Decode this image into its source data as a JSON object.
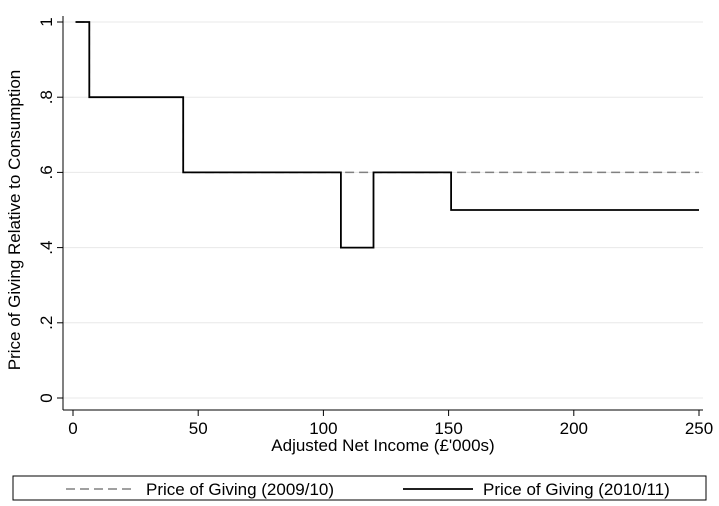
{
  "chart_data": {
    "type": "line",
    "title": "",
    "xlabel": "Adjusted Net Income (£'000s)",
    "ylabel": "Price of Giving Relative to Consumption",
    "xlim": [
      0,
      250
    ],
    "ylim": [
      0,
      1
    ],
    "x_ticks": [
      0,
      50,
      100,
      150,
      200,
      250
    ],
    "x_tick_labels": [
      "0",
      "50",
      "100",
      "150",
      "200",
      "250"
    ],
    "y_ticks": [
      0,
      0.2,
      0.4,
      0.6,
      0.8,
      1
    ],
    "y_tick_labels": [
      "0",
      ".2",
      ".4",
      ".6",
      ".8",
      "1"
    ],
    "grid": "horizontal",
    "legend": "bottom",
    "series": [
      {
        "name": "Price of Giving (2009/10)",
        "color": "#808080",
        "style": "dashed",
        "x": [
          1,
          6.5,
          6.5,
          44,
          44,
          250
        ],
        "y": [
          1,
          1,
          0.8,
          0.8,
          0.6,
          0.6
        ]
      },
      {
        "name": "Price of Giving (2010/11)",
        "color": "#000000",
        "style": "solid",
        "x": [
          1,
          6.5,
          6.5,
          44,
          44,
          107,
          107,
          120,
          120,
          151,
          151,
          250
        ],
        "y": [
          1,
          1,
          0.8,
          0.8,
          0.6,
          0.6,
          0.4,
          0.4,
          0.6,
          0.6,
          0.5,
          0.5
        ]
      }
    ]
  }
}
